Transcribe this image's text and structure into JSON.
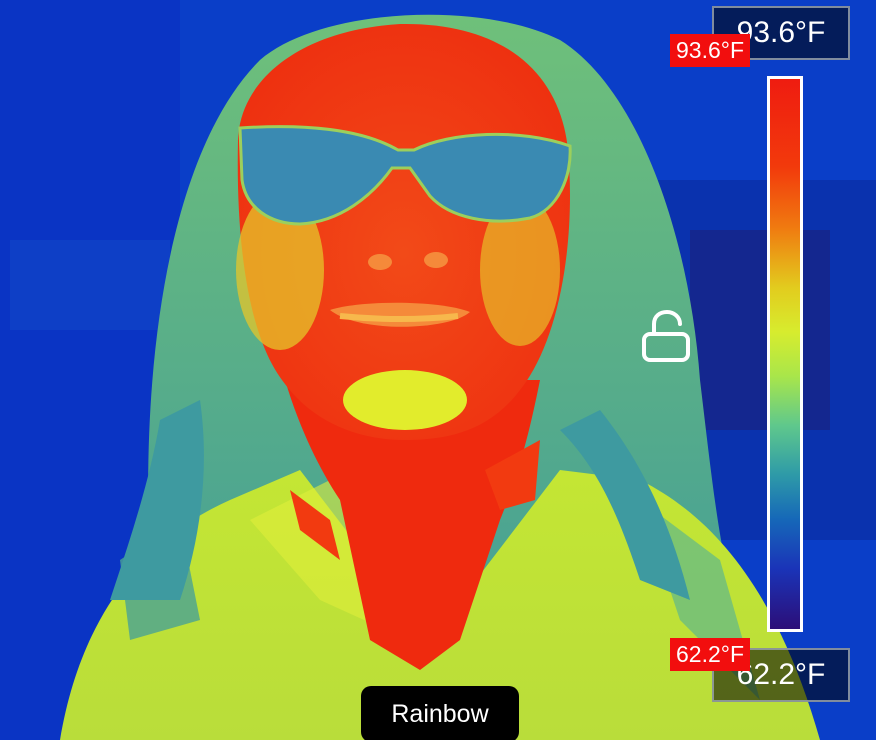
{
  "readout": {
    "max_box": "93.6°F",
    "min_box": "62.2°F",
    "max_tag": "93.6°F",
    "min_tag": "62.2°F"
  },
  "palette": {
    "label": "Rainbow"
  },
  "icons": {
    "lock": "unlocked-padlock-icon"
  },
  "colors": {
    "hot": "#f20e0e",
    "warm": "#d7ec2e",
    "mid": "#3c9a9c",
    "cold": "#0a36c8",
    "coldest": "#2c0e78"
  }
}
